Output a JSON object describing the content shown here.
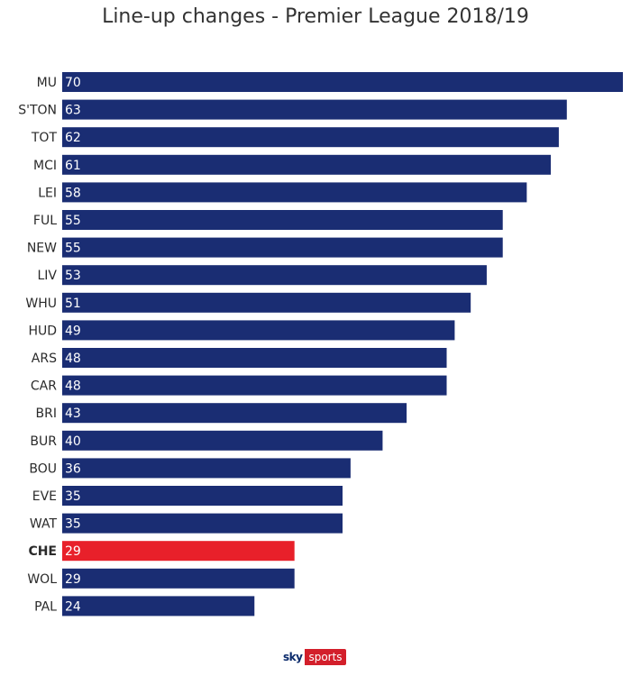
{
  "chart_data": {
    "type": "bar",
    "orientation": "horizontal",
    "title": "Line-up changes - Premier League 2018/19",
    "categories": [
      "MU",
      "S'TON",
      "TOT",
      "MCI",
      "LEI",
      "FUL",
      "NEW",
      "LIV",
      "WHU",
      "HUD",
      "ARS",
      "CAR",
      "BRI",
      "BUR",
      "BOU",
      "EVE",
      "WAT",
      "CHE",
      "WOL",
      "PAL"
    ],
    "values": [
      70,
      63,
      62,
      61,
      58,
      55,
      55,
      53,
      51,
      49,
      48,
      48,
      43,
      40,
      36,
      35,
      35,
      29,
      29,
      24
    ],
    "highlight": "CHE",
    "xlim": [
      0,
      70
    ],
    "grid": false,
    "bar_color": "#1a2d73",
    "highlight_color": "#e8202a"
  },
  "logo": {
    "sky": "sky",
    "sports": "sports"
  }
}
